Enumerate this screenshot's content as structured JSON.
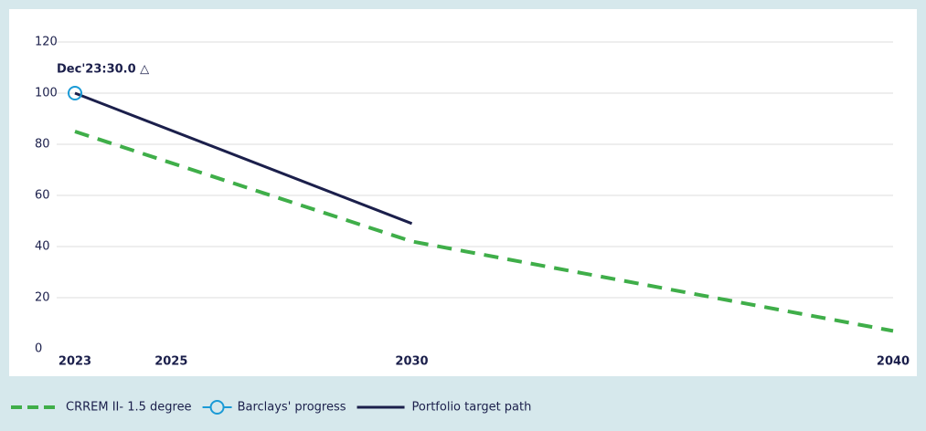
{
  "chart_data": {
    "type": "line",
    "annotation": "Dec'23:30.0 △",
    "xlim": [
      2023,
      2040
    ],
    "xticks": [
      2023,
      2025,
      2030,
      2040
    ],
    "ylim": [
      0,
      120
    ],
    "yticks": [
      0,
      20,
      40,
      60,
      80,
      100,
      120
    ],
    "grid": true,
    "series": [
      {
        "name": "CRREM II- 1.5 degree",
        "color": "#3fae49",
        "dashed": true,
        "x": [
          2023,
          2030,
          2040
        ],
        "values": [
          85,
          42,
          7
        ]
      },
      {
        "name": "Barclays' progress",
        "color": "#1a9ad6",
        "marker": "circle",
        "x": [
          2023
        ],
        "values": [
          100
        ]
      },
      {
        "name": "Portfolio target path",
        "color": "#1b1f4b",
        "x": [
          2023,
          2030
        ],
        "values": [
          100,
          49
        ]
      }
    ]
  }
}
